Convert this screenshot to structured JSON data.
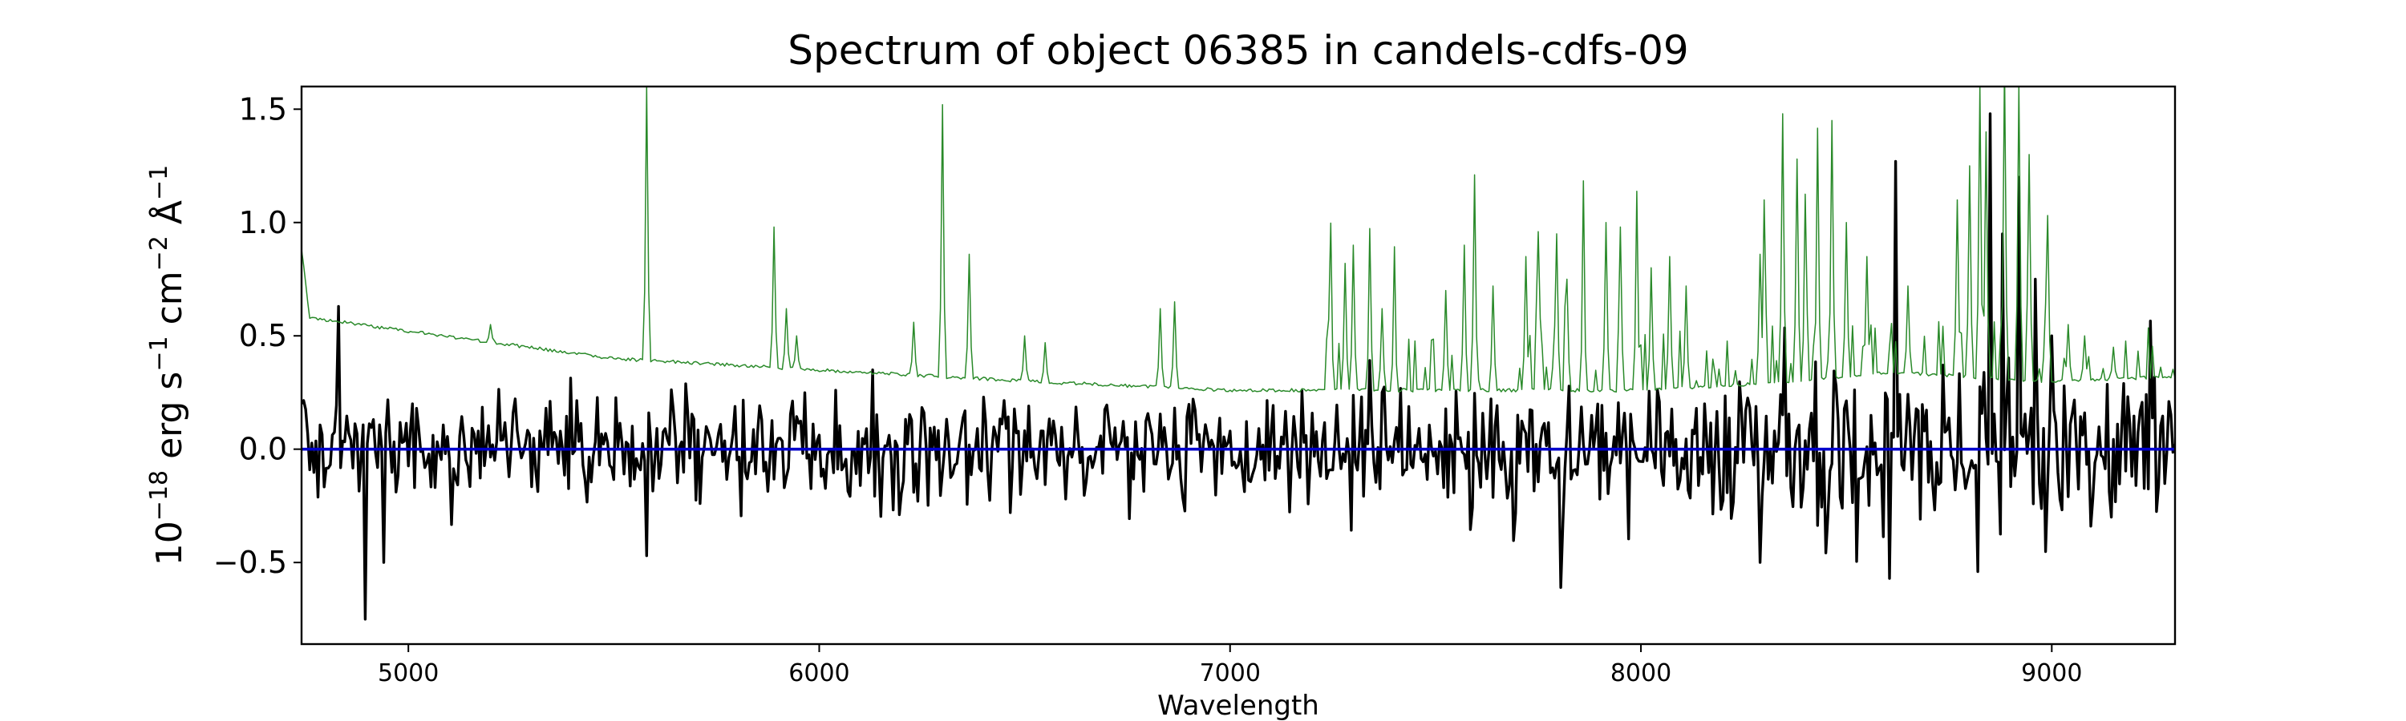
{
  "chart_data": {
    "type": "line",
    "title": "Spectrum of object 06385 in candels-cdfs-09",
    "xlabel": "Wavelength",
    "ylabel_prefix": "10",
    "ylabel_sup1": "−18",
    "ylabel_mid1": " erg s",
    "ylabel_sup2": "−1",
    "ylabel_mid2": " cm",
    "ylabel_sup3": "−2",
    "ylabel_mid3": " Å",
    "ylabel_sup4": "−1",
    "xlim": [
      4740,
      9300
    ],
    "ylim": [
      -0.86,
      1.6
    ],
    "xticks": [
      5000,
      6000,
      7000,
      8000,
      9000
    ],
    "xtick_labels": [
      "5000",
      "6000",
      "7000",
      "8000",
      "9000"
    ],
    "yticks": [
      -0.5,
      0.0,
      0.5,
      1.0,
      1.5
    ],
    "ytick_labels": [
      "−0.5",
      "0.0",
      "0.5",
      "1.0",
      "1.5"
    ],
    "grid": false,
    "legend": "none",
    "series": [
      {
        "role": "flux",
        "color": "#000000",
        "x_range": [
          4740,
          9300
        ],
        "wavelength_step": 5,
        "base": 0.0,
        "noise_sigma": [
          0.16,
          0.2,
          0.26
        ],
        "features": [
          {
            "x": 4830,
            "y": 0.63
          },
          {
            "x": 4893,
            "y": -0.75
          },
          {
            "x": 4942,
            "y": -0.5
          },
          {
            "x": 5578,
            "y": -0.47
          },
          {
            "x": 7805,
            "y": -0.61
          },
          {
            "x": 8288,
            "y": -0.5
          },
          {
            "x": 8605,
            "y": -0.57
          },
          {
            "x": 8622,
            "y": 1.27
          },
          {
            "x": 8822,
            "y": -0.54
          },
          {
            "x": 8848,
            "y": 1.48
          },
          {
            "x": 8880,
            "y": 0.95
          },
          {
            "x": 8920,
            "y": 1.2
          },
          {
            "x": 8958,
            "y": 0.75
          },
          {
            "x": 9000,
            "y": 0.5
          }
        ]
      },
      {
        "role": "error",
        "color": "#2a8a2a",
        "x_range": [
          4740,
          9300
        ],
        "wavelength_step": 5,
        "continuum": [
          {
            "x": 4740,
            "y": 0.88
          },
          {
            "x": 4760,
            "y": 0.58
          },
          {
            "x": 5000,
            "y": 0.52
          },
          {
            "x": 5500,
            "y": 0.4
          },
          {
            "x": 6000,
            "y": 0.35
          },
          {
            "x": 6500,
            "y": 0.3
          },
          {
            "x": 7000,
            "y": 0.26
          },
          {
            "x": 7500,
            "y": 0.26
          },
          {
            "x": 8000,
            "y": 0.26
          },
          {
            "x": 8300,
            "y": 0.29
          },
          {
            "x": 8600,
            "y": 0.34
          },
          {
            "x": 9000,
            "y": 0.3
          },
          {
            "x": 9300,
            "y": 0.32
          }
        ],
        "peaks": [
          {
            "x": 5198,
            "y": 0.55
          },
          {
            "x": 5578,
            "y": 1.6
          },
          {
            "x": 5580,
            "y": 1.6
          },
          {
            "x": 5890,
            "y": 0.98
          },
          {
            "x": 5920,
            "y": 0.62
          },
          {
            "x": 5945,
            "y": 0.5
          },
          {
            "x": 6230,
            "y": 0.56
          },
          {
            "x": 6300,
            "y": 1.52
          },
          {
            "x": 6363,
            "y": 0.86
          },
          {
            "x": 6500,
            "y": 0.5
          },
          {
            "x": 6550,
            "y": 0.47
          },
          {
            "x": 6830,
            "y": 0.62
          },
          {
            "x": 6865,
            "y": 0.65
          },
          {
            "x": 7245,
            "y": 0.8
          },
          {
            "x": 7280,
            "y": 0.82
          },
          {
            "x": 7300,
            "y": 0.9
          },
          {
            "x": 7340,
            "y": 0.8
          },
          {
            "x": 7370,
            "y": 0.62
          },
          {
            "x": 7400,
            "y": 0.72
          },
          {
            "x": 7525,
            "y": 0.7
          },
          {
            "x": 7570,
            "y": 0.9
          },
          {
            "x": 7595,
            "y": 1.21
          },
          {
            "x": 7640,
            "y": 0.72
          },
          {
            "x": 7720,
            "y": 0.85
          },
          {
            "x": 7750,
            "y": 0.96
          },
          {
            "x": 7795,
            "y": 0.95
          },
          {
            "x": 7820,
            "y": 0.75
          },
          {
            "x": 7860,
            "y": 0.95
          },
          {
            "x": 7915,
            "y": 1.0
          },
          {
            "x": 7950,
            "y": 0.98
          },
          {
            "x": 7990,
            "y": 1.02
          },
          {
            "x": 8025,
            "y": 0.8
          },
          {
            "x": 8070,
            "y": 0.85
          },
          {
            "x": 8110,
            "y": 0.72
          },
          {
            "x": 8290,
            "y": 0.86
          },
          {
            "x": 8300,
            "y": 1.1
          },
          {
            "x": 8345,
            "y": 1.48
          },
          {
            "x": 8380,
            "y": 1.28
          },
          {
            "x": 8400,
            "y": 1.0
          },
          {
            "x": 8430,
            "y": 1.3
          },
          {
            "x": 8465,
            "y": 1.45
          },
          {
            "x": 8500,
            "y": 1.0
          },
          {
            "x": 8550,
            "y": 0.85
          },
          {
            "x": 8650,
            "y": 0.72
          },
          {
            "x": 8770,
            "y": 1.1
          },
          {
            "x": 8800,
            "y": 1.25
          },
          {
            "x": 8825,
            "y": 1.6
          },
          {
            "x": 8840,
            "y": 1.4
          },
          {
            "x": 8885,
            "y": 1.6
          },
          {
            "x": 8920,
            "y": 1.6
          },
          {
            "x": 8945,
            "y": 1.3
          },
          {
            "x": 8990,
            "y": 1.0
          },
          {
            "x": 9040,
            "y": 0.55
          },
          {
            "x": 9080,
            "y": 0.5
          },
          {
            "x": 9150,
            "y": 0.45
          }
        ]
      },
      {
        "role": "zero",
        "color": "#0000cc",
        "x": [
          4740,
          9300
        ],
        "y": [
          0.0,
          0.0
        ]
      }
    ]
  }
}
